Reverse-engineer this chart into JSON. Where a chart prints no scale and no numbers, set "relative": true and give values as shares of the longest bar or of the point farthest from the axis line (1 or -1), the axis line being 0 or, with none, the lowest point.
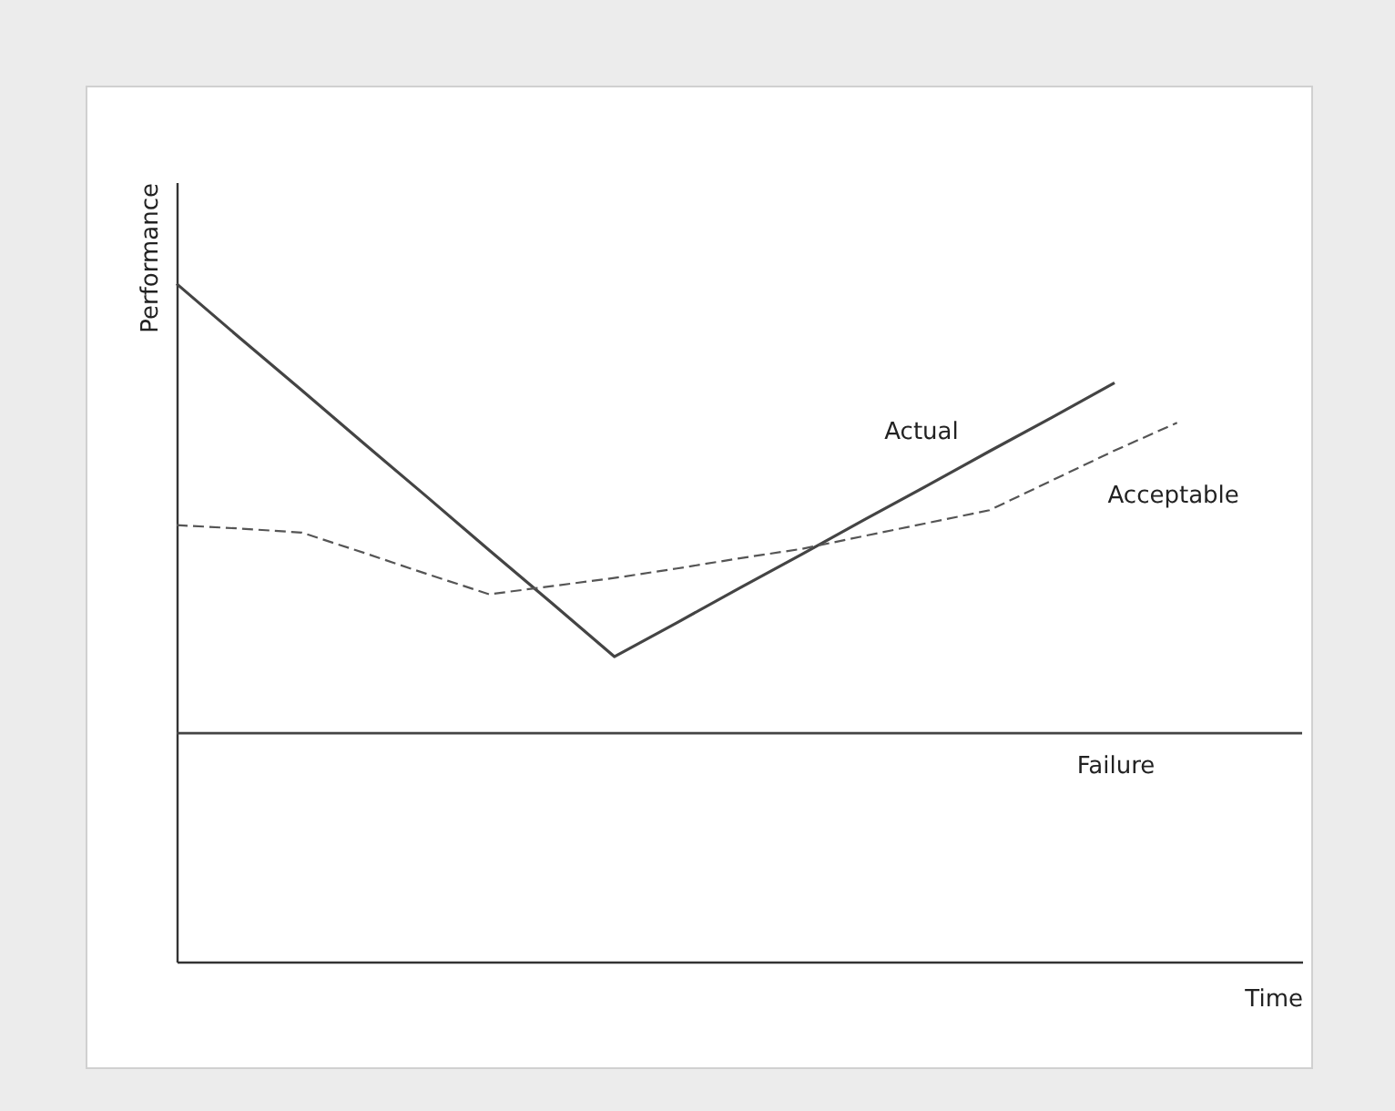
{
  "chart_data": {
    "type": "line",
    "relative": true,
    "xlabel": "Time",
    "ylabel": "Performance",
    "categories": [
      null,
      null,
      null,
      null,
      null,
      null,
      null,
      null,
      null,
      null,
      null,
      null,
      null,
      null,
      null,
      null,
      null,
      null,
      null
    ],
    "series": [
      {
        "name": "Actual",
        "color": "#444444",
        "line_style": "solid",
        "values": [
          1,
          0.921,
          0.843,
          0.764,
          0.686,
          0.607,
          0.529,
          0.45,
          0.5,
          0.551,
          0.601,
          0.652,
          0.702,
          0.753,
          0.803,
          0.854,
          null,
          null,
          null
        ]
      },
      {
        "name": "Acceptable",
        "color": "#555555",
        "line_style": "dashed",
        "values": [
          0.644,
          0.639,
          0.633,
          0.603,
          0.572,
          0.542,
          0.554,
          0.566,
          0.58,
          0.595,
          0.609,
          0.628,
          0.647,
          0.666,
          0.71,
          0.754,
          0.795,
          null,
          null
        ]
      }
    ],
    "ref_lines": [
      {
        "axis": "y",
        "value": 0.337,
        "label": "Failure",
        "color": "#444444"
      }
    ]
  }
}
